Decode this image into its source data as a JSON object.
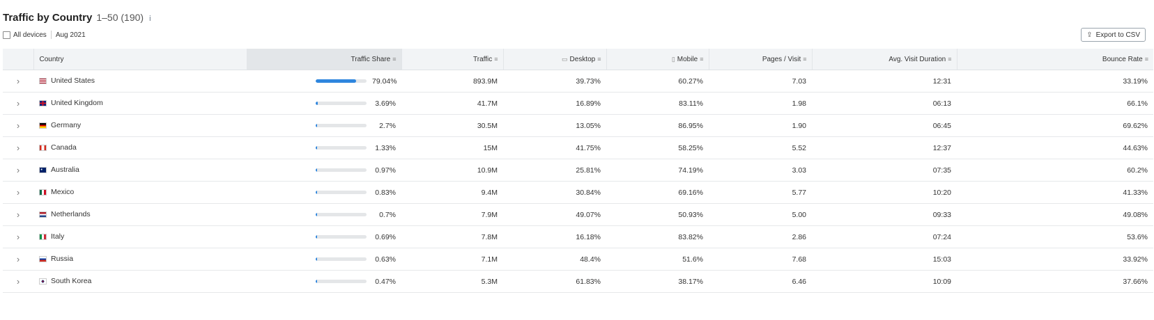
{
  "header": {
    "title": "Traffic by Country",
    "range": "1–50 (190)",
    "info_icon": "i",
    "device": "All devices",
    "date": "Aug 2021",
    "export_label": "Export to CSV"
  },
  "columns": {
    "country": "Country",
    "traffic_share": "Traffic Share",
    "traffic": "Traffic",
    "desktop": "Desktop",
    "mobile": "Mobile",
    "pages_visit": "Pages / Visit",
    "avg_visit_duration": "Avg. Visit Duration",
    "bounce_rate": "Bounce Rate"
  },
  "colors": {
    "bar_fill": "#2e86de",
    "bar_track": "#e4e6e8",
    "header_bg": "#f2f4f6"
  },
  "rows": [
    {
      "country": "United States",
      "flag": "us",
      "share": "79.04%",
      "share_num": 79.04,
      "traffic": "893.9M",
      "desktop": "39.73%",
      "mobile": "60.27%",
      "pages": "7.03",
      "duration": "12:31",
      "bounce": "33.19%"
    },
    {
      "country": "United Kingdom",
      "flag": "gb",
      "share": "3.69%",
      "share_num": 3.69,
      "traffic": "41.7M",
      "desktop": "16.89%",
      "mobile": "83.11%",
      "pages": "1.98",
      "duration": "06:13",
      "bounce": "66.1%"
    },
    {
      "country": "Germany",
      "flag": "de",
      "share": "2.7%",
      "share_num": 2.7,
      "traffic": "30.5M",
      "desktop": "13.05%",
      "mobile": "86.95%",
      "pages": "1.90",
      "duration": "06:45",
      "bounce": "69.62%"
    },
    {
      "country": "Canada",
      "flag": "ca",
      "share": "1.33%",
      "share_num": 1.33,
      "traffic": "15M",
      "desktop": "41.75%",
      "mobile": "58.25%",
      "pages": "5.52",
      "duration": "12:37",
      "bounce": "44.63%"
    },
    {
      "country": "Australia",
      "flag": "au",
      "share": "0.97%",
      "share_num": 0.97,
      "traffic": "10.9M",
      "desktop": "25.81%",
      "mobile": "74.19%",
      "pages": "3.03",
      "duration": "07:35",
      "bounce": "60.2%"
    },
    {
      "country": "Mexico",
      "flag": "mx",
      "share": "0.83%",
      "share_num": 0.83,
      "traffic": "9.4M",
      "desktop": "30.84%",
      "mobile": "69.16%",
      "pages": "5.77",
      "duration": "10:20",
      "bounce": "41.33%"
    },
    {
      "country": "Netherlands",
      "flag": "nl",
      "share": "0.7%",
      "share_num": 0.7,
      "traffic": "7.9M",
      "desktop": "49.07%",
      "mobile": "50.93%",
      "pages": "5.00",
      "duration": "09:33",
      "bounce": "49.08%"
    },
    {
      "country": "Italy",
      "flag": "it",
      "share": "0.69%",
      "share_num": 0.69,
      "traffic": "7.8M",
      "desktop": "16.18%",
      "mobile": "83.82%",
      "pages": "2.86",
      "duration": "07:24",
      "bounce": "53.6%"
    },
    {
      "country": "Russia",
      "flag": "ru",
      "share": "0.63%",
      "share_num": 0.63,
      "traffic": "7.1M",
      "desktop": "48.4%",
      "mobile": "51.6%",
      "pages": "7.68",
      "duration": "15:03",
      "bounce": "33.92%"
    },
    {
      "country": "South Korea",
      "flag": "kr",
      "share": "0.47%",
      "share_num": 0.47,
      "traffic": "5.3M",
      "desktop": "61.83%",
      "mobile": "38.17%",
      "pages": "6.46",
      "duration": "10:09",
      "bounce": "37.66%"
    }
  ]
}
